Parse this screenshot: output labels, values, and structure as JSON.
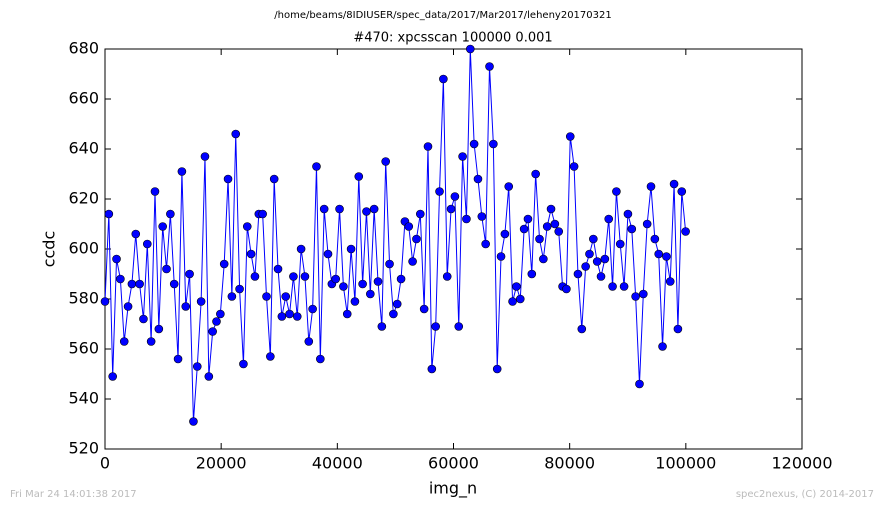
{
  "chart_data": {
    "type": "line",
    "suptitle": "/home/beams/8IDIUSER/spec_data/2017/Mar2017/leheny20170321",
    "title": "#470: xpcsscan 100000 0.001",
    "x_label": "img_n",
    "y_label": "ccdc",
    "footer_left": "Fri Mar 24 14:01:38 2017",
    "footer_right": "spec2nexus, (C) 2014-2017",
    "xlim": [
      0,
      120000
    ],
    "ylim": [
      520,
      680
    ],
    "xticks": [
      0,
      20000,
      40000,
      60000,
      80000,
      100000,
      120000
    ],
    "yticks": [
      520,
      540,
      560,
      580,
      600,
      620,
      640,
      660,
      680
    ],
    "color": "#0000ff",
    "x": [
      0,
      662,
      1324,
      1986,
      2648,
      3310,
      3972,
      4634,
      5296,
      5958,
      6620,
      7282,
      7944,
      8606,
      9268,
      9930,
      10592,
      11254,
      11916,
      12578,
      13240,
      13902,
      14564,
      15226,
      15888,
      16550,
      17212,
      17874,
      18536,
      19198,
      19860,
      20522,
      21184,
      21846,
      22508,
      23170,
      23832,
      24494,
      25156,
      25818,
      26480,
      27142,
      27804,
      28466,
      29128,
      29790,
      30452,
      31114,
      31776,
      32438,
      33100,
      33762,
      34424,
      35086,
      35748,
      36410,
      37072,
      37734,
      38396,
      39058,
      39720,
      40382,
      41044,
      41706,
      42368,
      43030,
      43692,
      44354,
      45016,
      45678,
      46340,
      47002,
      47664,
      48326,
      48988,
      49650,
      50312,
      50974,
      51636,
      52298,
      52960,
      53622,
      54284,
      54946,
      55608,
      56270,
      56932,
      57594,
      58256,
      58918,
      59580,
      60242,
      60904,
      61566,
      62228,
      62890,
      63552,
      64214,
      64876,
      65538,
      66200,
      66862,
      67524,
      68186,
      68848,
      69510,
      70172,
      70834,
      71496,
      72158,
      72820,
      73482,
      74144,
      74806,
      75468,
      76130,
      76792,
      77454,
      78116,
      78778,
      79440,
      80102,
      80764,
      81426,
      82088,
      82750,
      83412,
      84074,
      84736,
      85398,
      86060,
      86722,
      87384,
      88046,
      88708,
      89370,
      90032,
      90694,
      91356,
      92018,
      92680,
      93342,
      94004,
      94666,
      95328,
      95990,
      96652,
      97314,
      97976,
      98638,
      99300,
      99962
    ],
    "values": [
      579,
      614,
      549,
      596,
      588,
      563,
      577,
      586,
      606,
      586,
      572,
      602,
      563,
      623,
      568,
      609,
      592,
      614,
      586,
      556,
      631,
      577,
      590,
      531,
      553,
      579,
      637,
      549,
      567,
      571,
      574,
      594,
      628,
      581,
      646,
      584,
      554,
      609,
      598,
      589,
      614,
      614,
      581,
      557,
      628,
      592,
      573,
      581,
      574,
      589,
      573,
      600,
      589,
      563,
      576,
      633,
      556,
      616,
      598,
      586,
      588,
      616,
      585,
      574,
      600,
      579,
      629,
      586,
      615,
      582,
      616,
      587,
      569,
      635,
      594,
      574,
      578,
      588,
      611,
      609,
      595,
      604,
      614,
      576,
      641,
      552,
      569,
      623,
      668,
      589,
      616,
      621,
      569,
      637,
      612,
      680,
      642,
      628,
      613,
      602,
      673,
      642,
      552,
      597,
      606,
      625,
      579,
      585,
      580,
      608,
      612,
      590,
      630,
      604,
      596,
      609,
      616,
      610,
      607,
      585,
      584,
      645,
      633,
      590,
      568,
      593,
      598,
      604,
      595,
      589,
      596,
      612,
      585,
      623,
      602,
      585,
      614,
      608,
      581,
      546,
      582,
      610,
      625,
      604,
      598,
      561,
      597,
      587,
      626,
      568,
      623,
      607
    ]
  }
}
